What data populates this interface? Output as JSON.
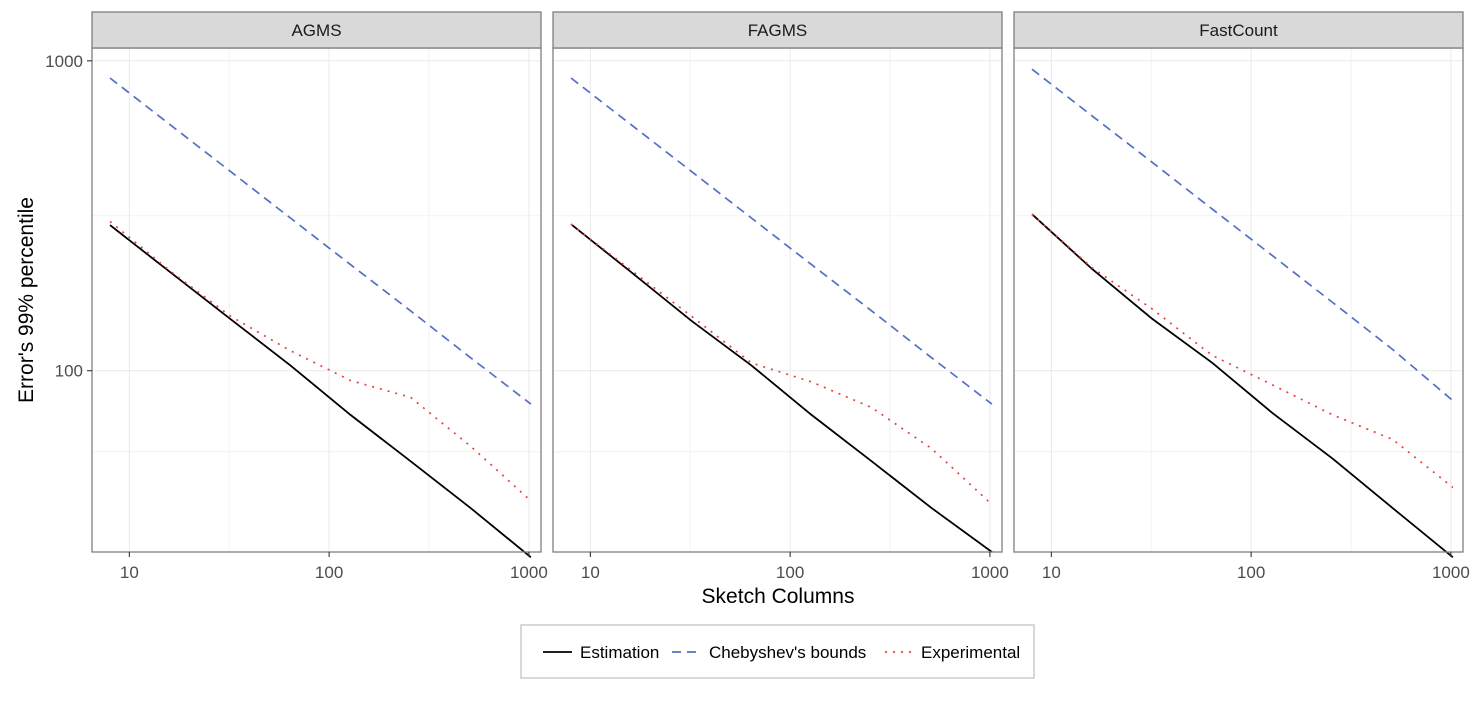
{
  "chart_data": {
    "type": "line",
    "facets": [
      "AGMS",
      "FAGMS",
      "FastCount"
    ],
    "xlabel": "Sketch Columns",
    "ylabel": "Error's 99% percentile",
    "x_scale": "log",
    "y_scale": "log",
    "xlim": [
      6.5,
      1150
    ],
    "ylim": [
      26,
      1100
    ],
    "x_ticks": [
      10,
      100,
      1000
    ],
    "x_tick_labels": [
      "10",
      "100",
      "1000"
    ],
    "y_ticks": [
      100,
      1000
    ],
    "y_tick_labels": [
      "100",
      "1000"
    ],
    "grid": true,
    "legend_position": "bottom",
    "legend": [
      {
        "name": "Estimation",
        "color": "#000000",
        "dash": "solid"
      },
      {
        "name": "Chebyshev's bounds",
        "color": "#5470c6",
        "dash": "dashed"
      },
      {
        "name": "Experimental",
        "color": "#e8413d",
        "dash": "dotted"
      }
    ],
    "x": [
      8,
      16,
      32,
      64,
      128,
      256,
      512,
      1024
    ],
    "panels": [
      {
        "facet": "AGMS",
        "series": [
          {
            "name": "Estimation",
            "values": [
              295,
              208,
              147,
              104,
              72,
              51,
              36,
              25
            ]
          },
          {
            "name": "Chebyshev's bounds",
            "values": [
              880,
              622,
              440,
              311,
              220,
              156,
              110,
              78
            ]
          },
          {
            "name": "Experimental",
            "values": [
              303,
              210,
              150,
              116,
              93,
              82,
              57,
              38
            ]
          }
        ]
      },
      {
        "facet": "FAGMS",
        "series": [
          {
            "name": "Estimation",
            "values": [
              297,
              208,
              145,
              104,
              72,
              51,
              36,
              26
            ]
          },
          {
            "name": "Chebyshev's bounds",
            "values": [
              880,
              622,
              440,
              311,
              220,
              156,
              110,
              78
            ]
          },
          {
            "name": "Experimental",
            "values": [
              297,
              211,
              150,
              106,
              92,
              76,
              56,
              37
            ]
          }
        ]
      },
      {
        "facet": "FastCount",
        "series": [
          {
            "name": "Estimation",
            "values": [
              320,
              213,
              147,
              106,
              73,
              52,
              36,
              25
            ]
          },
          {
            "name": "Chebyshev's bounds",
            "values": [
              940,
              664,
              470,
              332,
              235,
              166,
              117,
              80
            ]
          },
          {
            "name": "Experimental",
            "values": [
              320,
              215,
              158,
              112,
              90,
              72,
              60,
              42
            ]
          }
        ]
      }
    ]
  }
}
